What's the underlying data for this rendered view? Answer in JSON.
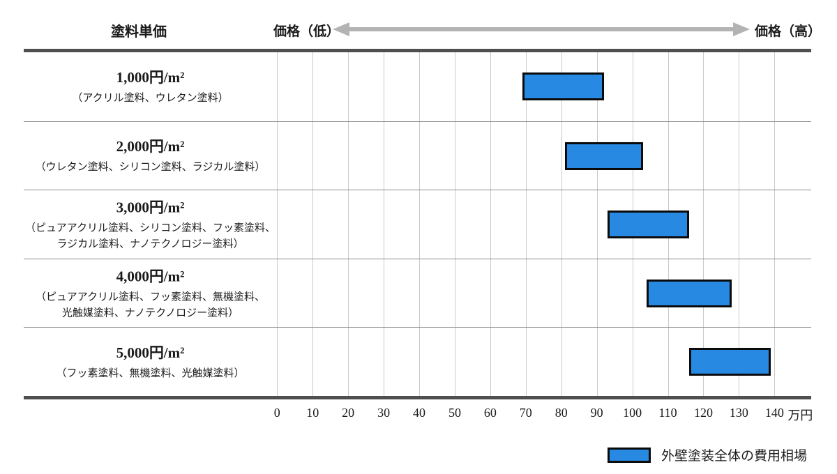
{
  "chart_data": {
    "type": "bar",
    "subtype": "horizontal_range_bars",
    "column_header": "塗料単価",
    "axis_low_label": "価格（低）",
    "axis_high_label": "価格（高）",
    "x_ticks": [
      0,
      10,
      20,
      30,
      40,
      50,
      60,
      70,
      80,
      90,
      100,
      110,
      120,
      130,
      140
    ],
    "x_unit": "万円",
    "xlim": [
      0,
      145
    ],
    "grid": true,
    "categories": [
      "1,000円/m²",
      "2,000円/m²",
      "3,000円/m²",
      "4,000円/m²",
      "5,000円/m²"
    ],
    "category_notes": [
      [
        "（アクリル塗料、ウレタン塗料）"
      ],
      [
        "（ウレタン塗料、シリコン塗料、ラジカル塗料）"
      ],
      [
        "（ピュアアクリル塗料、シリコン塗料、フッ素塗料、",
        "ラジカル塗料、ナノテクノロジー塗料）"
      ],
      [
        "（ピュアアクリル塗料、フッ素塗料、無機塗料、",
        "光触媒塗料、ナノテクノロジー塗料）"
      ],
      [
        "（フッ素塗料、無機塗料、光触媒塗料）"
      ]
    ],
    "series": [
      {
        "name": "外壁塗装全体の費用相場",
        "ranges_man_yen": [
          [
            69,
            92
          ],
          [
            81,
            103
          ],
          [
            93,
            116
          ],
          [
            104,
            128
          ],
          [
            116,
            139
          ]
        ]
      }
    ],
    "legend": {
      "position": "bottom-right",
      "label": "外壁塗装全体の費用相場"
    },
    "colors": {
      "bar_fill": "#2789E2",
      "bar_border": "#0b0b0b",
      "gridline": "#c9c9c9",
      "rule": "#4f4f4f",
      "separator": "#8a8a8a",
      "arrow": "#b3b3b3"
    }
  }
}
